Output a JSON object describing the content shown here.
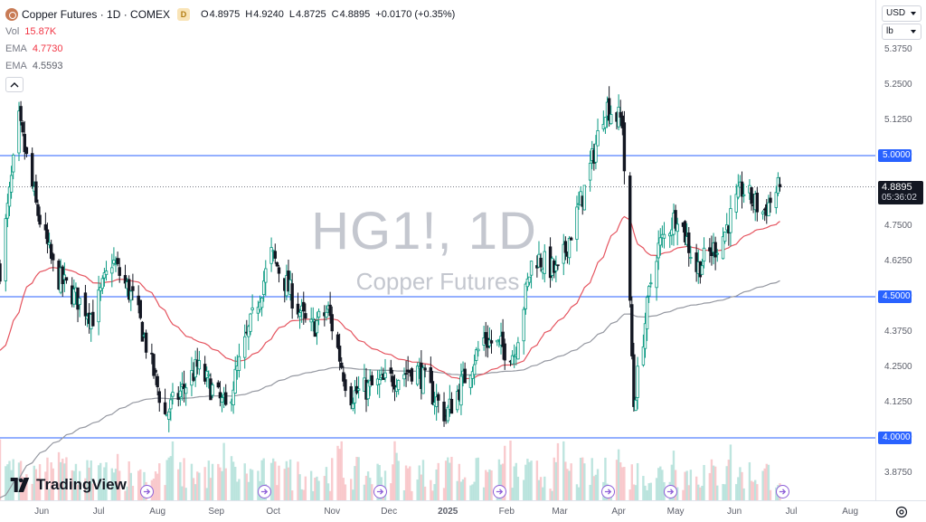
{
  "symbol": {
    "title": "Copper Futures · 1D · COMEX",
    "badge": "D"
  },
  "ohlc": {
    "open_label": "O",
    "open": "4.8975",
    "high_label": "H",
    "high": "4.9240",
    "low_label": "L",
    "low": "4.8725",
    "close_label": "C",
    "close": "4.8895",
    "change": "+0.0170 (+0.35%)"
  },
  "indicators": {
    "volume": {
      "label": "Vol",
      "value": "15.87K",
      "color": "#f23645"
    },
    "ema1": {
      "label": "EMA",
      "value": "4.7730",
      "color": "#f23645"
    },
    "ema2": {
      "label": "EMA",
      "value": "4.5593",
      "color": "#5d606b"
    }
  },
  "watermark": {
    "symbol": "HG1!, 1D",
    "description": "Copper Futures"
  },
  "axis_controls": {
    "currency": "USD",
    "unit": "lb"
  },
  "price_axis": {
    "ticks": [
      "5.3750",
      "5.2500",
      "5.1250",
      "5.0000",
      "4.8750",
      "4.7500",
      "4.6250",
      "4.5000",
      "4.3750",
      "4.2500",
      "4.1250",
      "4.0000",
      "3.8750"
    ],
    "tagged_levels": [
      "5.0000",
      "4.5000",
      "4.0000"
    ],
    "current_price": "4.8895",
    "countdown": "05:36:02"
  },
  "time_axis": {
    "labels": [
      "Jun",
      "Jul",
      "Aug",
      "Sep",
      "Oct",
      "Nov",
      "Dec",
      "2025",
      "Feb",
      "Mar",
      "Apr",
      "May",
      "Jun",
      "Jul",
      "Aug"
    ]
  },
  "brand": {
    "name": "TradingView"
  },
  "icons": {
    "settings": "gear-icon",
    "collapse": "chevron-up-icon",
    "event": "dividend-arrow-icon"
  },
  "colors": {
    "up": "#089981",
    "down": "#131722",
    "ema_fast": "#e5545f",
    "ema_slow": "#9598a1",
    "horizontal_line": "#2962ff",
    "volume_up": "#a8dcd4",
    "volume_down": "#f7b9bd",
    "price_tag": "#2962ff",
    "event_icon": "#8e5fd8"
  },
  "chart_data": {
    "type": "candlestick",
    "symbol": "HG1!",
    "interval": "1D",
    "exchange": "COMEX",
    "horizontal_lines": [
      5.0,
      4.5,
      4.0
    ],
    "ylim": [
      3.82,
      5.42
    ],
    "x_range": [
      "2024-05-10",
      "2025-08-20"
    ],
    "anchors": [
      {
        "date": "2024-05-10",
        "close": 4.6
      },
      {
        "date": "2024-05-20",
        "close": 5.12
      },
      {
        "date": "2024-05-29",
        "close": 4.82
      },
      {
        "date": "2024-06-08",
        "close": 4.58
      },
      {
        "date": "2024-06-28",
        "close": 4.43
      },
      {
        "date": "2024-07-08",
        "close": 4.63
      },
      {
        "date": "2024-07-20",
        "close": 4.48
      },
      {
        "date": "2024-08-05",
        "close": 4.08
      },
      {
        "date": "2024-08-22",
        "close": 4.25
      },
      {
        "date": "2024-09-06",
        "close": 4.1
      },
      {
        "date": "2024-09-30",
        "close": 4.65
      },
      {
        "date": "2024-10-20",
        "close": 4.38
      },
      {
        "date": "2024-10-30",
        "close": 4.45
      },
      {
        "date": "2024-11-10",
        "close": 4.15
      },
      {
        "date": "2024-11-30",
        "close": 4.2
      },
      {
        "date": "2024-12-15",
        "close": 4.25
      },
      {
        "date": "2024-12-31",
        "close": 4.08
      },
      {
        "date": "2025-01-20",
        "close": 4.35
      },
      {
        "date": "2025-02-05",
        "close": 4.3
      },
      {
        "date": "2025-02-15",
        "close": 4.65
      },
      {
        "date": "2025-02-28",
        "close": 4.58
      },
      {
        "date": "2025-03-15",
        "close": 4.9
      },
      {
        "date": "2025-03-25",
        "close": 5.18
      },
      {
        "date": "2025-04-03",
        "close": 5.12
      },
      {
        "date": "2025-04-09",
        "close": 4.12
      },
      {
        "date": "2025-04-20",
        "close": 4.65
      },
      {
        "date": "2025-05-02",
        "close": 4.8
      },
      {
        "date": "2025-05-12",
        "close": 4.6
      },
      {
        "date": "2025-05-25",
        "close": 4.7
      },
      {
        "date": "2025-06-05",
        "close": 4.88
      },
      {
        "date": "2025-06-16",
        "close": 4.8
      },
      {
        "date": "2025-06-25",
        "close": 4.8895
      }
    ],
    "ema_fast_last": 4.773,
    "ema_slow_last": 4.5593,
    "last": {
      "open": 4.8975,
      "high": 4.924,
      "low": 4.8725,
      "close": 4.8895,
      "volume": "15.87K"
    }
  }
}
